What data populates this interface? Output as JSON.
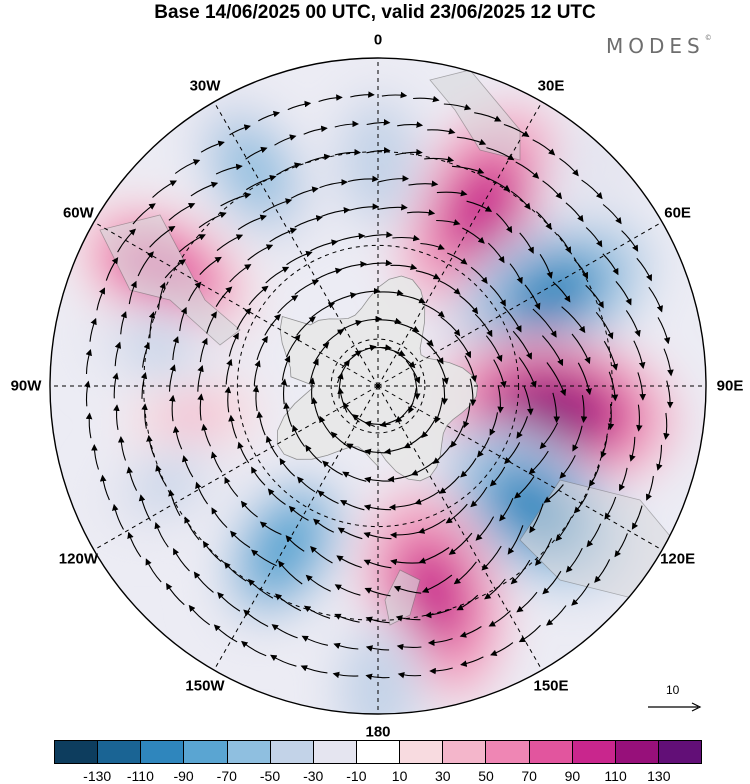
{
  "title": "Base 14/06/2025 00 UTC, valid 23/06/2025 12 UTC",
  "brand": {
    "name": "MODES",
    "mark": "©"
  },
  "longitude_labels": [
    {
      "text": "0",
      "lon": 0
    },
    {
      "text": "30E",
      "lon": 30
    },
    {
      "text": "60E",
      "lon": 60
    },
    {
      "text": "90E",
      "lon": 90
    },
    {
      "text": "120E",
      "lon": 120
    },
    {
      "text": "150E",
      "lon": 150
    },
    {
      "text": "180",
      "lon": 180
    },
    {
      "text": "150W",
      "lon": -150
    },
    {
      "text": "120W",
      "lon": -120
    },
    {
      "text": "90W",
      "lon": -90
    },
    {
      "text": "60W",
      "lon": -60
    },
    {
      "text": "30W",
      "lon": -30
    }
  ],
  "reference_vector": {
    "label": "10"
  },
  "colorbar": {
    "colors": [
      "#0d3d5e",
      "#1a6494",
      "#2f86bd",
      "#5aa5d2",
      "#8fbfe0",
      "#c3d3e8",
      "#e5e5f0",
      "#ffffff",
      "#f8dbe0",
      "#f4b6cb",
      "#ef86b4",
      "#e2559e",
      "#c9268d",
      "#97107a",
      "#620f77"
    ],
    "tick_labels": [
      "-130",
      "-110",
      "-90",
      "-70",
      "-50",
      "-30",
      "-10",
      "10",
      "30",
      "50",
      "70",
      "90",
      "110",
      "130"
    ]
  },
  "anomaly_centers": [
    {
      "lon": -62,
      "lat": -38,
      "value": 85
    },
    {
      "lon": -30,
      "lat": -37,
      "value": -70
    },
    {
      "lon": 30,
      "lat": -46,
      "value": 105
    },
    {
      "lon": 62,
      "lat": -48,
      "value": -100
    },
    {
      "lon": 98,
      "lat": -52,
      "value": 125
    },
    {
      "lon": 128,
      "lat": -48,
      "value": -100
    },
    {
      "lon": 165,
      "lat": -44,
      "value": 100
    },
    {
      "lon": -150,
      "lat": -50,
      "value": -80
    },
    {
      "lon": -100,
      "lat": -50,
      "value": 30
    },
    {
      "lon": -80,
      "lat": -42,
      "value": -40
    },
    {
      "lon": 0,
      "lat": -42,
      "value": -50
    },
    {
      "lon": -115,
      "lat": -40,
      "value": -35
    },
    {
      "lon": 180,
      "lat": -25,
      "value": -50
    },
    {
      "lon": 45,
      "lat": -25,
      "value": -30
    }
  ]
}
